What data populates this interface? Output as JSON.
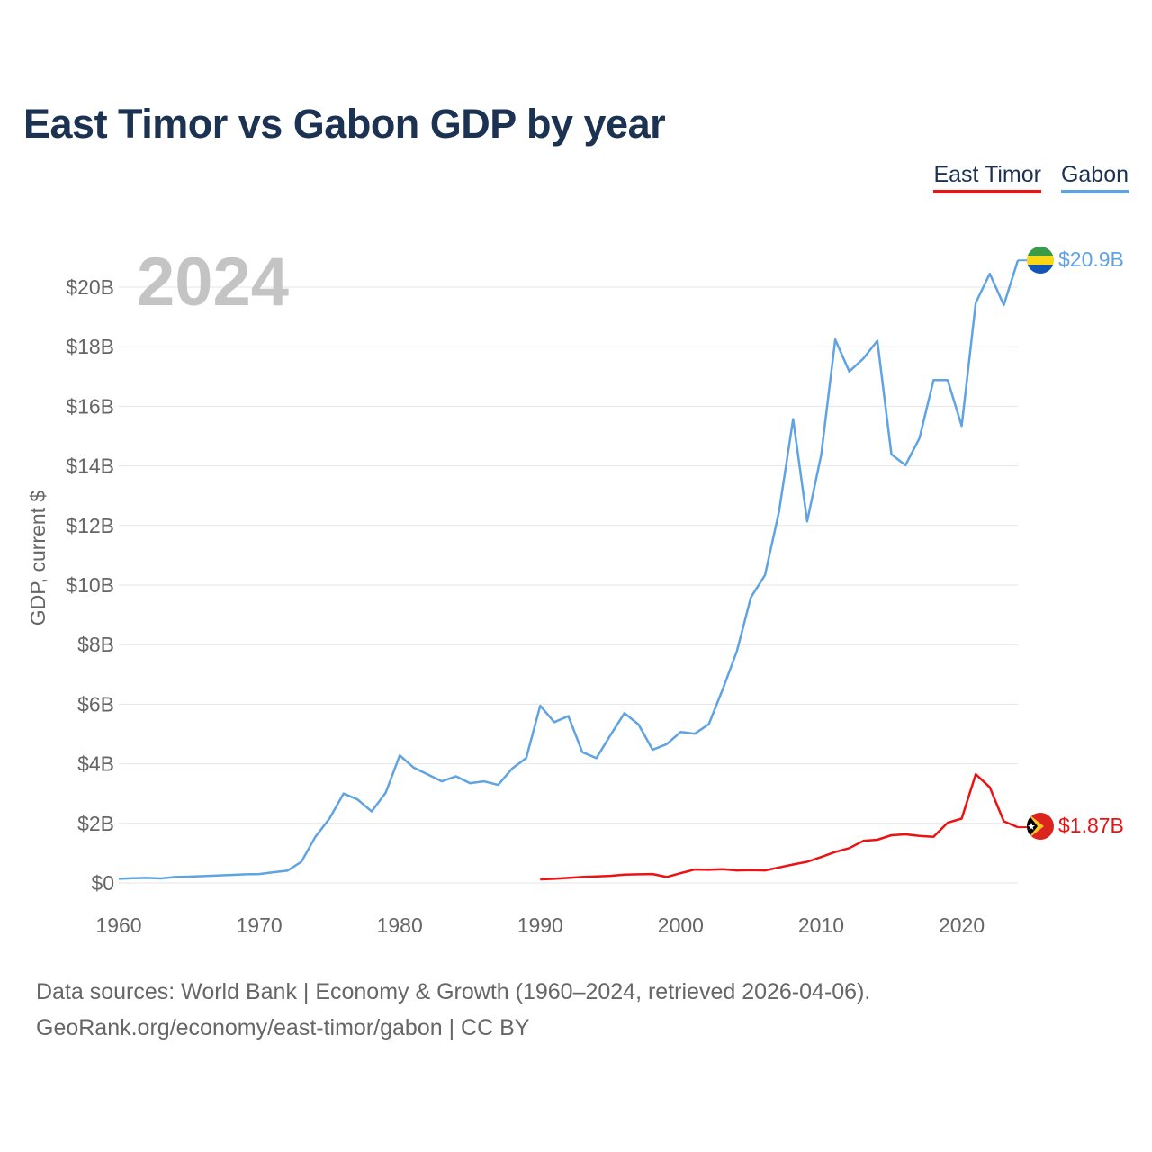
{
  "title": "East Timor vs Gabon GDP by year",
  "legend": [
    {
      "name": "East Timor",
      "color": "#ee1111"
    },
    {
      "name": "Gabon",
      "color": "#5fa3e3"
    }
  ],
  "year_watermark": "2024",
  "footer": {
    "line1": "Data sources: World Bank | Economy & Growth (1960–2024, retrieved 2026-04-06).",
    "line2": "GeoRank.org/economy/east-timor/gabon | CC BY"
  },
  "chart_data": {
    "type": "line",
    "title": "East Timor vs Gabon GDP by year",
    "xlabel": "",
    "ylabel": "GDP, current $",
    "xlim": [
      1960,
      2024
    ],
    "ylim": [
      0,
      21
    ],
    "x_ticks": [
      1960,
      1970,
      1980,
      1990,
      2000,
      2010,
      2020
    ],
    "x_tick_labels": [
      "1960",
      "1970",
      "1980",
      "1990",
      "2000",
      "2010",
      "2020"
    ],
    "y_ticks": [
      0,
      2,
      4,
      6,
      8,
      10,
      12,
      14,
      16,
      18,
      20
    ],
    "y_tick_labels": [
      "$0",
      "$2B",
      "$4B",
      "$6B",
      "$8B",
      "$10B",
      "$12B",
      "$14B",
      "$16B",
      "$18B",
      "$20B"
    ],
    "grid": true,
    "series": [
      {
        "name": "Gabon",
        "color": "#5fa3e3",
        "end_label": "$20.9B",
        "flag": "gabon",
        "x": [
          1960,
          1961,
          1962,
          1963,
          1964,
          1965,
          1966,
          1967,
          1968,
          1969,
          1970,
          1971,
          1972,
          1973,
          1974,
          1975,
          1976,
          1977,
          1978,
          1979,
          1980,
          1981,
          1982,
          1983,
          1984,
          1985,
          1986,
          1987,
          1988,
          1989,
          1990,
          1991,
          1992,
          1993,
          1994,
          1995,
          1996,
          1997,
          1998,
          1999,
          2000,
          2001,
          2002,
          2003,
          2004,
          2005,
          2006,
          2007,
          2008,
          2009,
          2010,
          2011,
          2012,
          2013,
          2014,
          2015,
          2016,
          2017,
          2018,
          2019,
          2020,
          2021,
          2022,
          2023,
          2024
        ],
        "values": [
          0.14,
          0.16,
          0.17,
          0.15,
          0.2,
          0.21,
          0.23,
          0.25,
          0.27,
          0.29,
          0.3,
          0.36,
          0.41,
          0.71,
          1.55,
          2.16,
          3.0,
          2.8,
          2.4,
          3.03,
          4.28,
          3.87,
          3.64,
          3.41,
          3.58,
          3.35,
          3.41,
          3.29,
          3.84,
          4.19,
          5.95,
          5.4,
          5.6,
          4.39,
          4.19,
          4.96,
          5.7,
          5.32,
          4.47,
          4.66,
          5.07,
          5.01,
          5.33,
          6.51,
          7.78,
          9.59,
          10.33,
          12.46,
          15.57,
          12.14,
          14.37,
          18.24,
          17.17,
          17.6,
          18.2,
          14.39,
          14.02,
          14.93,
          16.88,
          16.88,
          15.34,
          19.47,
          20.45,
          19.4,
          20.9
        ]
      },
      {
        "name": "East Timor",
        "color": "#ee1111",
        "end_label": "$1.87B",
        "flag": "east-timor",
        "x": [
          1990,
          1991,
          1992,
          1993,
          1994,
          1995,
          1996,
          1997,
          1998,
          1999,
          2000,
          2001,
          2002,
          2003,
          2004,
          2005,
          2006,
          2007,
          2008,
          2009,
          2010,
          2011,
          2012,
          2013,
          2014,
          2015,
          2016,
          2017,
          2018,
          2019,
          2020,
          2021,
          2022,
          2023,
          2024
        ],
        "values": [
          0.12,
          0.14,
          0.17,
          0.2,
          0.22,
          0.24,
          0.28,
          0.29,
          0.3,
          0.2,
          0.33,
          0.45,
          0.44,
          0.46,
          0.42,
          0.43,
          0.42,
          0.52,
          0.62,
          0.71,
          0.87,
          1.04,
          1.17,
          1.41,
          1.45,
          1.6,
          1.63,
          1.58,
          1.55,
          2.02,
          2.16,
          3.65,
          3.21,
          2.07,
          1.87
        ]
      }
    ]
  }
}
